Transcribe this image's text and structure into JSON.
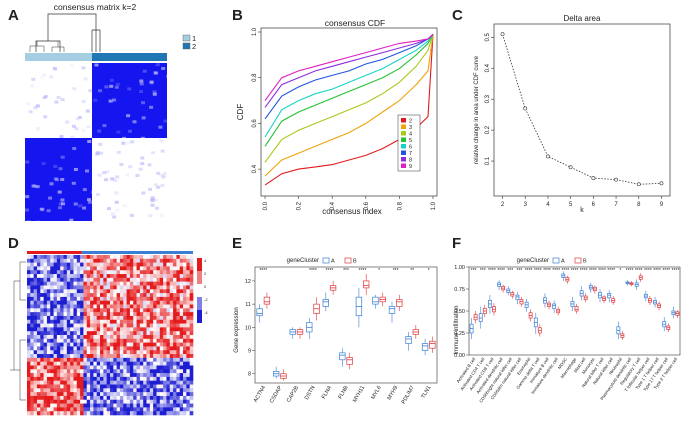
{
  "panels": {
    "A": {
      "letter": "A",
      "title": "consensus matrix k=2",
      "legend": [
        {
          "label": "1",
          "color": "#a6cee3"
        },
        {
          "label": "2",
          "color": "#1f78b4"
        }
      ],
      "matrix_colors": {
        "high": "#1515f0",
        "low": "#ffffff"
      }
    },
    "B": {
      "letter": "B"
    },
    "C": {
      "letter": "C"
    },
    "D": {
      "letter": "D",
      "legend_values": [
        "4",
        "2",
        "0",
        "-2",
        "-4"
      ],
      "colors": {
        "high": "#e41a1c",
        "mid": "#ffffff",
        "low": "#1d1dd1"
      }
    },
    "E": {
      "letter": "E"
    },
    "F": {
      "letter": "F"
    }
  },
  "chart_data": [
    {
      "id": "B",
      "type": "line",
      "title": "consensus CDF",
      "xlabel": "consensus index",
      "ylabel": "CDF",
      "xlim": [
        0,
        1
      ],
      "ylim": [
        0.3,
        1.0
      ],
      "x_ticks": [
        "0.0",
        "0.2",
        "0.4",
        "0.6",
        "0.8",
        "1.0"
      ],
      "y_ticks": [
        "0.4",
        "0.6",
        "0.8",
        "1.0"
      ],
      "x": [
        0.0,
        0.1,
        0.2,
        0.3,
        0.4,
        0.5,
        0.6,
        0.7,
        0.8,
        0.9,
        0.97,
        1.0
      ],
      "series": [
        {
          "name": "2",
          "color": "#e31a1c",
          "values": [
            0.33,
            0.38,
            0.4,
            0.41,
            0.42,
            0.44,
            0.46,
            0.49,
            0.53,
            0.58,
            0.63,
            0.99
          ]
        },
        {
          "name": "3",
          "color": "#f0a30a",
          "values": [
            0.37,
            0.44,
            0.47,
            0.5,
            0.53,
            0.56,
            0.6,
            0.65,
            0.7,
            0.77,
            0.83,
            0.99
          ]
        },
        {
          "name": "4",
          "color": "#a8c81a",
          "values": [
            0.43,
            0.53,
            0.57,
            0.6,
            0.63,
            0.66,
            0.69,
            0.73,
            0.78,
            0.85,
            0.92,
            0.99
          ]
        },
        {
          "name": "5",
          "color": "#22c230",
          "values": [
            0.5,
            0.61,
            0.65,
            0.68,
            0.71,
            0.74,
            0.77,
            0.8,
            0.84,
            0.9,
            0.95,
            0.99
          ]
        },
        {
          "name": "6",
          "color": "#16d4c4",
          "values": [
            0.54,
            0.66,
            0.7,
            0.73,
            0.75,
            0.78,
            0.81,
            0.84,
            0.88,
            0.92,
            0.96,
            0.99
          ]
        },
        {
          "name": "7",
          "color": "#1f55e0",
          "values": [
            0.62,
            0.72,
            0.76,
            0.79,
            0.81,
            0.83,
            0.86,
            0.88,
            0.91,
            0.94,
            0.97,
            0.99
          ]
        },
        {
          "name": "8",
          "color": "#8c2de0",
          "values": [
            0.67,
            0.77,
            0.8,
            0.83,
            0.85,
            0.87,
            0.89,
            0.91,
            0.93,
            0.95,
            0.97,
            0.99
          ]
        },
        {
          "name": "9",
          "color": "#e020c0",
          "values": [
            0.7,
            0.8,
            0.83,
            0.85,
            0.87,
            0.89,
            0.91,
            0.93,
            0.95,
            0.96,
            0.97,
            0.99
          ]
        }
      ]
    },
    {
      "id": "C",
      "type": "line",
      "title": "Delta area",
      "xlabel": "k",
      "ylabel": "relative change in area under CDF curve",
      "x": [
        2,
        3,
        4,
        5,
        6,
        7,
        8,
        9
      ],
      "values": [
        0.51,
        0.27,
        0.115,
        0.08,
        0.045,
        0.04,
        0.025,
        0.028
      ],
      "xlim": [
        1.8,
        9.2
      ],
      "ylim": [
        0.0,
        0.53
      ],
      "x_ticks": [
        "2",
        "3",
        "4",
        "5",
        "6",
        "7",
        "8",
        "9"
      ],
      "y_ticks": [
        "0.1",
        "0.2",
        "0.3",
        "0.4",
        "0.5"
      ]
    },
    {
      "id": "E",
      "type": "box",
      "legend_title": "geneCluster",
      "xlabel": "",
      "ylabel": "Gene expression",
      "ylim": [
        7.6,
        12.6
      ],
      "y_ticks": [
        "8",
        "9",
        "10",
        "11",
        "12"
      ],
      "categories": [
        "ACTN4",
        "CSDAP",
        "CAP2B",
        "DSTN",
        "FLNA",
        "FLNB",
        "MYH11",
        "MYL6",
        "MYH9",
        "PDLIM7",
        "TLN1"
      ],
      "significance": [
        "****",
        "",
        "",
        "****",
        "****",
        "***",
        "****",
        "*",
        "***",
        "**",
        "*"
      ],
      "series": [
        {
          "name": "A",
          "color": "#3b7fd4",
          "medians": [
            10.6,
            8.0,
            9.8,
            10.0,
            11.1,
            8.8,
            10.9,
            11.1,
            10.8,
            9.5,
            9.2
          ],
          "q1": [
            10.5,
            7.9,
            9.7,
            9.8,
            10.9,
            8.6,
            10.5,
            11.0,
            10.6,
            9.3,
            9.0
          ],
          "q3": [
            10.8,
            8.1,
            9.9,
            10.2,
            11.2,
            8.9,
            11.3,
            11.3,
            10.9,
            9.6,
            9.3
          ],
          "min": [
            10.2,
            7.8,
            9.5,
            9.5,
            10.7,
            8.3,
            10.0,
            10.8,
            10.2,
            9.0,
            8.8
          ],
          "max": [
            11.0,
            8.3,
            10.0,
            10.4,
            11.5,
            9.1,
            11.7,
            11.4,
            11.1,
            9.8,
            9.5
          ]
        },
        {
          "name": "B",
          "color": "#e0383b",
          "medians": [
            11.1,
            7.9,
            9.8,
            10.8,
            11.7,
            8.6,
            11.8,
            11.2,
            11.1,
            9.8,
            9.3
          ],
          "q1": [
            11.0,
            7.8,
            9.7,
            10.6,
            11.6,
            8.4,
            11.7,
            11.1,
            10.9,
            9.7,
            9.1
          ],
          "q3": [
            11.3,
            8.0,
            9.9,
            11.0,
            11.8,
            8.7,
            12.0,
            11.3,
            11.2,
            9.9,
            9.4
          ],
          "min": [
            10.8,
            7.7,
            9.5,
            10.3,
            11.4,
            8.2,
            11.4,
            10.9,
            10.7,
            9.5,
            8.9
          ],
          "max": [
            11.5,
            8.2,
            10.0,
            11.3,
            12.0,
            8.9,
            12.3,
            11.5,
            11.4,
            10.1,
            9.6
          ]
        }
      ]
    },
    {
      "id": "F",
      "type": "box",
      "legend_title": "geneCluster",
      "xlabel": "",
      "ylabel": "Immune infiltration",
      "ylim": [
        0.0,
        1.0
      ],
      "y_ticks": [
        "0.00",
        "0.25",
        "0.50",
        "0.75",
        "1.00"
      ],
      "categories": [
        "Activated B cell",
        "Activated CD4 T cell",
        "Activated CD8 T cell",
        "Activated dendritic cell",
        "CD56bright natural killer cell",
        "CD56dim natural killer cell",
        "Eosinophil",
        "Gamma delta T cell",
        "Immature B cell",
        "Immature dendritic cell",
        "MDSC",
        "Macrophage",
        "Mast cell",
        "Monocyte",
        "Natural killer T cell",
        "Natural killer cell",
        "Neutrophil",
        "Plasmacytoid dendritic cell",
        "Regulatory T cell",
        "T follicular helper cell",
        "Type 1 T helper cell",
        "Type 17 T helper cell",
        "Type 2 T helper cell"
      ],
      "significance": [
        "***",
        "***",
        "****",
        "****",
        "***",
        "***",
        "****",
        "****",
        "****",
        "****",
        "****",
        "****",
        "****",
        "****",
        "****",
        "****",
        "*",
        "****",
        "****",
        "****",
        "****",
        "****",
        "****"
      ],
      "series": [
        {
          "name": "A",
          "color": "#3b7fd4",
          "medians": [
            0.3,
            0.42,
            0.58,
            0.8,
            0.73,
            0.66,
            0.57,
            0.37,
            0.62,
            0.56,
            0.9,
            0.58,
            0.7,
            0.77,
            0.68,
            0.68,
            0.28,
            0.82,
            0.8,
            0.67,
            0.6,
            0.35,
            0.48
          ],
          "q1": [
            0.25,
            0.38,
            0.54,
            0.78,
            0.71,
            0.63,
            0.54,
            0.32,
            0.59,
            0.53,
            0.88,
            0.55,
            0.67,
            0.75,
            0.65,
            0.65,
            0.24,
            0.81,
            0.78,
            0.65,
            0.58,
            0.32,
            0.46
          ],
          "q3": [
            0.35,
            0.47,
            0.62,
            0.82,
            0.75,
            0.68,
            0.6,
            0.42,
            0.65,
            0.58,
            0.92,
            0.61,
            0.73,
            0.79,
            0.71,
            0.7,
            0.32,
            0.83,
            0.82,
            0.69,
            0.62,
            0.38,
            0.5
          ],
          "min": [
            0.18,
            0.3,
            0.47,
            0.74,
            0.68,
            0.58,
            0.49,
            0.24,
            0.54,
            0.48,
            0.84,
            0.5,
            0.62,
            0.71,
            0.6,
            0.6,
            0.18,
            0.79,
            0.74,
            0.61,
            0.54,
            0.27,
            0.42
          ],
          "max": [
            0.42,
            0.55,
            0.68,
            0.85,
            0.78,
            0.72,
            0.64,
            0.48,
            0.7,
            0.62,
            0.95,
            0.66,
            0.78,
            0.82,
            0.75,
            0.74,
            0.38,
            0.85,
            0.86,
            0.73,
            0.66,
            0.43,
            0.55
          ]
        },
        {
          "name": "B",
          "color": "#e0383b",
          "medians": [
            0.43,
            0.5,
            0.52,
            0.76,
            0.69,
            0.61,
            0.45,
            0.28,
            0.57,
            0.5,
            0.86,
            0.52,
            0.65,
            0.75,
            0.64,
            0.62,
            0.22,
            0.81,
            0.88,
            0.62,
            0.56,
            0.31,
            0.47
          ],
          "q1": [
            0.4,
            0.47,
            0.49,
            0.74,
            0.67,
            0.58,
            0.42,
            0.25,
            0.55,
            0.48,
            0.84,
            0.5,
            0.63,
            0.73,
            0.62,
            0.6,
            0.2,
            0.8,
            0.86,
            0.6,
            0.54,
            0.29,
            0.45
          ],
          "q3": [
            0.46,
            0.53,
            0.55,
            0.78,
            0.71,
            0.63,
            0.48,
            0.31,
            0.59,
            0.52,
            0.88,
            0.55,
            0.67,
            0.77,
            0.66,
            0.64,
            0.24,
            0.82,
            0.9,
            0.64,
            0.58,
            0.33,
            0.49
          ],
          "min": [
            0.36,
            0.43,
            0.45,
            0.71,
            0.64,
            0.55,
            0.38,
            0.21,
            0.52,
            0.45,
            0.81,
            0.47,
            0.6,
            0.7,
            0.59,
            0.57,
            0.17,
            0.78,
            0.83,
            0.57,
            0.51,
            0.26,
            0.42
          ],
          "max": [
            0.5,
            0.57,
            0.59,
            0.8,
            0.73,
            0.66,
            0.52,
            0.35,
            0.62,
            0.55,
            0.9,
            0.58,
            0.7,
            0.79,
            0.68,
            0.67,
            0.27,
            0.84,
            0.93,
            0.67,
            0.61,
            0.36,
            0.51
          ]
        }
      ]
    }
  ]
}
